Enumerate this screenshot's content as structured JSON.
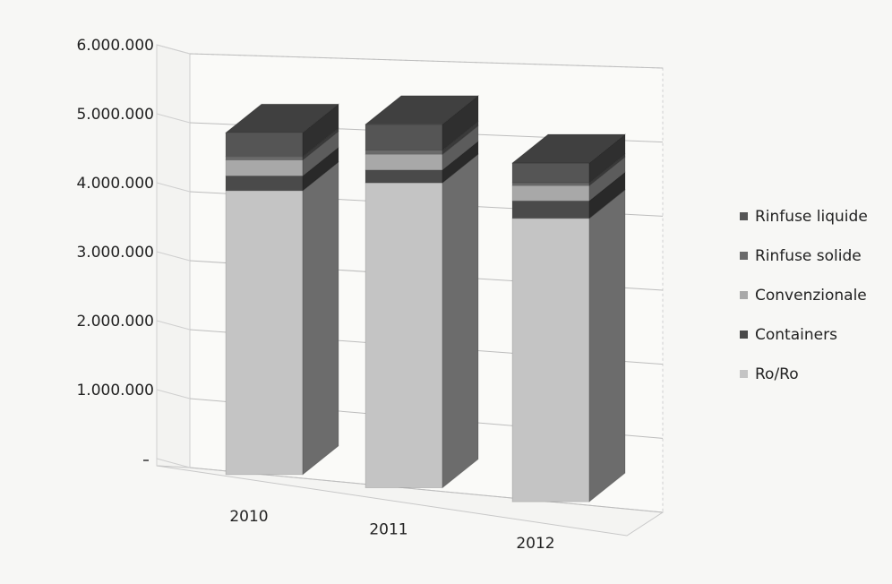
{
  "chart_data": {
    "type": "bar",
    "stacked": true,
    "three_d": true,
    "categories": [
      "2010",
      "2011",
      "2012"
    ],
    "series": [
      {
        "name": "Ro/Ro",
        "values": [
          4070000,
          4280000,
          3890000
        ],
        "color": "#c4c4c4"
      },
      {
        "name": "Containers",
        "values": [
          210000,
          180000,
          240000
        ],
        "color": "#4a4a4a"
      },
      {
        "name": "Convenzionale",
        "values": [
          230000,
          220000,
          210000
        ],
        "color": "#a8a8a8"
      },
      {
        "name": "Rinfuse solide",
        "values": [
          50000,
          60000,
          40000
        ],
        "color": "#6a6a6a"
      },
      {
        "name": "Rinfuse liquide",
        "values": [
          340000,
          360000,
          270000
        ],
        "color": "#555555"
      }
    ],
    "y_ticks": [
      "",
      "1.000.000",
      "2.000.000",
      "3.000.000",
      "4.000.000",
      "5.000.000",
      "6.000.000"
    ],
    "ylim": [
      0,
      6000000
    ],
    "grid": true,
    "legend_position": "right"
  }
}
